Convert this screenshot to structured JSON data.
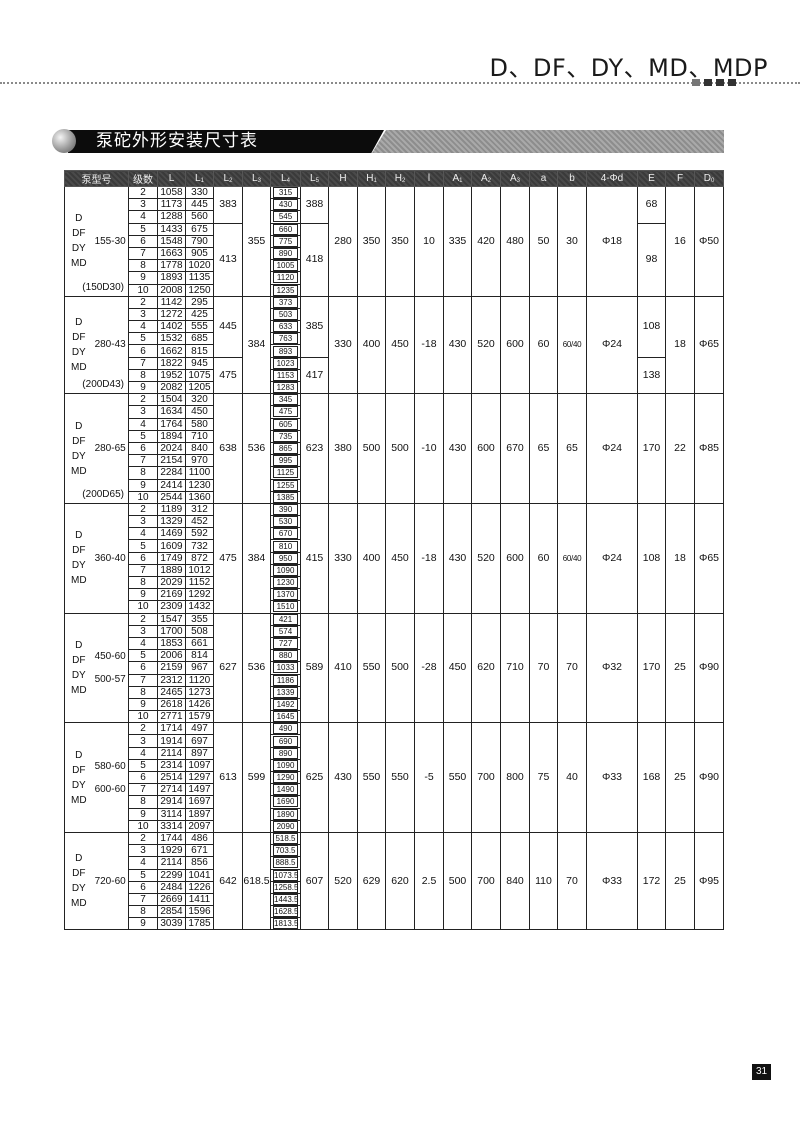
{
  "header": {
    "series_title": "D、DF、DY、MD、MDP"
  },
  "section": {
    "title": "泵砣外形安装尺寸表",
    "icon": "sphere-bullet-icon"
  },
  "table": {
    "headers": [
      {
        "label": "泵型号",
        "sub": ""
      },
      {
        "label": "级数",
        "sub": ""
      },
      {
        "label": "L",
        "sub": ""
      },
      {
        "label": "L",
        "sub": "1"
      },
      {
        "label": "L",
        "sub": "2"
      },
      {
        "label": "L",
        "sub": "3"
      },
      {
        "label": "L",
        "sub": "4"
      },
      {
        "label": "L",
        "sub": "5"
      },
      {
        "label": "H",
        "sub": ""
      },
      {
        "label": "H",
        "sub": "1"
      },
      {
        "label": "H",
        "sub": "2"
      },
      {
        "label": "l",
        "sub": ""
      },
      {
        "label": "A",
        "sub": "1"
      },
      {
        "label": "A",
        "sub": "2"
      },
      {
        "label": "A",
        "sub": "3"
      },
      {
        "label": "a",
        "sub": ""
      },
      {
        "label": "b",
        "sub": ""
      },
      {
        "label": "4-Φd",
        "sub": ""
      },
      {
        "label": "E",
        "sub": ""
      },
      {
        "label": "F",
        "sub": ""
      },
      {
        "label": "D",
        "sub": "0"
      }
    ],
    "groups": [
      {
        "series": [
          "D",
          "DF",
          "DY",
          "MD"
        ],
        "models": [
          "155-30"
        ],
        "code": "(150D30)",
        "rows": [
          [
            "2",
            "1058",
            "330",
            "315"
          ],
          [
            "3",
            "1173",
            "445",
            "430"
          ],
          [
            "4",
            "1288",
            "560",
            "545"
          ],
          [
            "5",
            "1433",
            "675",
            "660"
          ],
          [
            "6",
            "1548",
            "790",
            "775"
          ],
          [
            "7",
            "1663",
            "905",
            "890"
          ],
          [
            "8",
            "1778",
            "1020",
            "1005"
          ],
          [
            "9",
            "1893",
            "1135",
            "1120"
          ],
          [
            "10",
            "2008",
            "1250",
            "1235"
          ]
        ],
        "L2": [
          {
            "value": "383",
            "span": 3
          },
          {
            "value": "413",
            "span": 6
          }
        ],
        "L3": "355",
        "L5": [
          {
            "value": "388",
            "span": 3
          },
          {
            "value": "418",
            "span": 6
          }
        ],
        "common": [
          "280",
          "350",
          "350",
          "10",
          "335",
          "420",
          "480",
          "50",
          "30",
          "Φ18"
        ],
        "E": [
          {
            "value": "68",
            "span": 3
          },
          {
            "value": "98",
            "span": 6
          }
        ],
        "F": "16",
        "D0": "Φ50"
      },
      {
        "series": [
          "D",
          "DF",
          "DY",
          "MD"
        ],
        "models": [
          "280-43"
        ],
        "code": "(200D43)",
        "rows": [
          [
            "2",
            "1142",
            "295",
            "373"
          ],
          [
            "3",
            "1272",
            "425",
            "503"
          ],
          [
            "4",
            "1402",
            "555",
            "633"
          ],
          [
            "5",
            "1532",
            "685",
            "763"
          ],
          [
            "6",
            "1662",
            "815",
            "893"
          ],
          [
            "7",
            "1822",
            "945",
            "1023"
          ],
          [
            "8",
            "1952",
            "1075",
            "1153"
          ],
          [
            "9",
            "2082",
            "1205",
            "1283"
          ]
        ],
        "L2": [
          {
            "value": "445",
            "span": 5
          },
          {
            "value": "475",
            "span": 3
          }
        ],
        "L3": "384",
        "L5": [
          {
            "value": "385",
            "span": 5
          },
          {
            "value": "417",
            "span": 3
          }
        ],
        "common": [
          "330",
          "400",
          "450",
          "-18",
          "430",
          "520",
          "600",
          "60",
          "60/40",
          "Φ24"
        ],
        "E": [
          {
            "value": "108",
            "span": 5
          },
          {
            "value": "138",
            "span": 3
          }
        ],
        "F": "18",
        "D0": "Φ65"
      },
      {
        "series": [
          "D",
          "DF",
          "DY",
          "MD"
        ],
        "models": [
          "280-65"
        ],
        "code": "(200D65)",
        "rows": [
          [
            "2",
            "1504",
            "320",
            "345"
          ],
          [
            "3",
            "1634",
            "450",
            "475"
          ],
          [
            "4",
            "1764",
            "580",
            "605"
          ],
          [
            "5",
            "1894",
            "710",
            "735"
          ],
          [
            "6",
            "2024",
            "840",
            "865"
          ],
          [
            "7",
            "2154",
            "970",
            "995"
          ],
          [
            "8",
            "2284",
            "1100",
            "1125"
          ],
          [
            "9",
            "2414",
            "1230",
            "1255"
          ],
          [
            "10",
            "2544",
            "1360",
            "1385"
          ]
        ],
        "L2": [
          {
            "value": "638",
            "span": 9
          }
        ],
        "L3": "536",
        "L5": [
          {
            "value": "623",
            "span": 9
          }
        ],
        "common": [
          "380",
          "500",
          "500",
          "-10",
          "430",
          "600",
          "670",
          "65",
          "65",
          "Φ24"
        ],
        "E": [
          {
            "value": "170",
            "span": 9
          }
        ],
        "F": "22",
        "D0": "Φ85"
      },
      {
        "series": [
          "D",
          "DF",
          "DY",
          "MD"
        ],
        "models": [
          "360-40"
        ],
        "code": "",
        "rows": [
          [
            "2",
            "1189",
            "312",
            "390"
          ],
          [
            "3",
            "1329",
            "452",
            "530"
          ],
          [
            "4",
            "1469",
            "592",
            "670"
          ],
          [
            "5",
            "1609",
            "732",
            "810"
          ],
          [
            "6",
            "1749",
            "872",
            "950"
          ],
          [
            "7",
            "1889",
            "1012",
            "1090"
          ],
          [
            "8",
            "2029",
            "1152",
            "1230"
          ],
          [
            "9",
            "2169",
            "1292",
            "1370"
          ],
          [
            "10",
            "2309",
            "1432",
            "1510"
          ]
        ],
        "L2": [
          {
            "value": "475",
            "span": 9
          }
        ],
        "L3": "384",
        "L5": [
          {
            "value": "415",
            "span": 9
          }
        ],
        "common": [
          "330",
          "400",
          "450",
          "-18",
          "430",
          "520",
          "600",
          "60",
          "60/40",
          "Φ24"
        ],
        "E": [
          {
            "value": "108",
            "span": 9
          }
        ],
        "F": "18",
        "D0": "Φ65"
      },
      {
        "series": [
          "D",
          "DF",
          "DY",
          "MD"
        ],
        "models": [
          "450-60",
          "500-57"
        ],
        "code": "",
        "rows": [
          [
            "2",
            "1547",
            "355",
            "421"
          ],
          [
            "3",
            "1700",
            "508",
            "574"
          ],
          [
            "4",
            "1853",
            "661",
            "727"
          ],
          [
            "5",
            "2006",
            "814",
            "880"
          ],
          [
            "6",
            "2159",
            "967",
            "1033"
          ],
          [
            "7",
            "2312",
            "1120",
            "1186"
          ],
          [
            "8",
            "2465",
            "1273",
            "1339"
          ],
          [
            "9",
            "2618",
            "1426",
            "1492"
          ],
          [
            "10",
            "2771",
            "1579",
            "1645"
          ]
        ],
        "L2": [
          {
            "value": "627",
            "span": 9
          }
        ],
        "L3": "536",
        "L5": [
          {
            "value": "589",
            "span": 9
          }
        ],
        "common": [
          "410",
          "550",
          "500",
          "-28",
          "450",
          "620",
          "710",
          "70",
          "70",
          "Φ32"
        ],
        "E": [
          {
            "value": "170",
            "span": 9
          }
        ],
        "F": "25",
        "D0": "Φ90"
      },
      {
        "series": [
          "D",
          "DF",
          "DY",
          "MD"
        ],
        "models": [
          "580-60",
          "600-60"
        ],
        "code": "",
        "rows": [
          [
            "2",
            "1714",
            "497",
            "490"
          ],
          [
            "3",
            "1914",
            "697",
            "690"
          ],
          [
            "4",
            "2114",
            "897",
            "890"
          ],
          [
            "5",
            "2314",
            "1097",
            "1090"
          ],
          [
            "6",
            "2514",
            "1297",
            "1290"
          ],
          [
            "7",
            "2714",
            "1497",
            "1490"
          ],
          [
            "8",
            "2914",
            "1697",
            "1690"
          ],
          [
            "9",
            "3114",
            "1897",
            "1890"
          ],
          [
            "10",
            "3314",
            "2097",
            "2090"
          ]
        ],
        "L2": [
          {
            "value": "613",
            "span": 9
          }
        ],
        "L3": "599",
        "L5": [
          {
            "value": "625",
            "span": 9
          }
        ],
        "common": [
          "430",
          "550",
          "550",
          "-5",
          "550",
          "700",
          "800",
          "75",
          "40",
          "Φ33"
        ],
        "E": [
          {
            "value": "168",
            "span": 9
          }
        ],
        "F": "25",
        "D0": "Φ90"
      },
      {
        "series": [
          "D",
          "DF",
          "DY",
          "MD"
        ],
        "models": [
          "720-60"
        ],
        "code": "",
        "rows": [
          [
            "2",
            "1744",
            "486",
            "518.5"
          ],
          [
            "3",
            "1929",
            "671",
            "703.5"
          ],
          [
            "4",
            "2114",
            "856",
            "888.5"
          ],
          [
            "5",
            "2299",
            "1041",
            "1073.5"
          ],
          [
            "6",
            "2484",
            "1226",
            "1258.5"
          ],
          [
            "7",
            "2669",
            "1411",
            "1443.5"
          ],
          [
            "8",
            "2854",
            "1596",
            "1628.5"
          ],
          [
            "9",
            "3039",
            "1785",
            "1813.5"
          ]
        ],
        "L2": [
          {
            "value": "642",
            "span": 8
          }
        ],
        "L3": "618.5",
        "L5": [
          {
            "value": "607",
            "span": 8
          }
        ],
        "common": [
          "520",
          "629",
          "620",
          "2.5",
          "500",
          "700",
          "840",
          "110",
          "70",
          "Φ33"
        ],
        "E": [
          {
            "value": "172",
            "span": 8
          }
        ],
        "F": "25",
        "D0": "Φ95"
      }
    ]
  },
  "footer": {
    "page_number": "31"
  }
}
